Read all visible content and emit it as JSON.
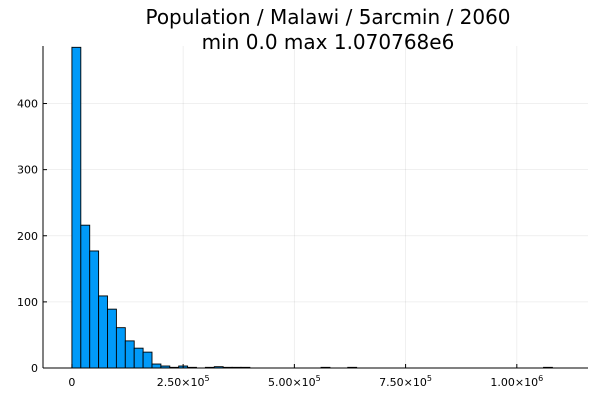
{
  "chart_data": {
    "type": "bar",
    "title": "Population / Malawi / 5arcmin / 2060",
    "subtitle": "min 0.0  max 1.070768e6",
    "xlabel": "",
    "ylabel": "",
    "bin_width": 20000,
    "bins_start": [
      0,
      20000,
      40000,
      60000,
      80000,
      100000,
      120000,
      140000,
      160000,
      180000,
      200000,
      220000,
      240000,
      260000,
      280000,
      300000,
      320000,
      340000,
      360000,
      380000,
      560000,
      620000,
      1060000
    ],
    "counts": [
      485,
      216,
      177,
      109,
      89,
      61,
      41,
      30,
      24,
      6,
      3,
      1,
      3,
      1,
      0,
      1,
      2,
      1,
      1,
      1,
      1,
      1,
      1
    ],
    "xlim": [
      -65000,
      1160000
    ],
    "ylim": [
      0,
      487
    ],
    "x_ticks": [
      {
        "value": 0,
        "mantissa": "0",
        "exp": ""
      },
      {
        "value": 250000,
        "mantissa": "2.50×10",
        "exp": "5"
      },
      {
        "value": 500000,
        "mantissa": "5.00×10",
        "exp": "5"
      },
      {
        "value": 750000,
        "mantissa": "7.50×10",
        "exp": "5"
      },
      {
        "value": 1000000,
        "mantissa": "1.00×10",
        "exp": "6"
      }
    ],
    "y_ticks": [
      {
        "value": 0,
        "label": "0"
      },
      {
        "value": 100,
        "label": "100"
      },
      {
        "value": 200,
        "label": "200"
      },
      {
        "value": 300,
        "label": "300"
      },
      {
        "value": 400,
        "label": "400"
      }
    ],
    "bar_color": "#009af9",
    "grid": true,
    "legend": "none"
  }
}
